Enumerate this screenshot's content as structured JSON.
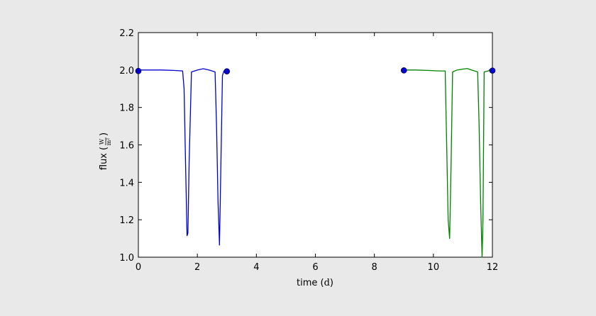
{
  "chart_data": {
    "type": "line",
    "title": "",
    "xlabel": "time",
    "xunit": "d",
    "ylabel": "flux",
    "yunit": {
      "numerator": "W",
      "denominator": "m²"
    },
    "xlim": [
      0,
      12
    ],
    "ylim": [
      1.0,
      2.2
    ],
    "xticks": [
      0,
      2,
      4,
      6,
      8,
      10,
      12
    ],
    "yticks": [
      1.0,
      1.2,
      1.4,
      1.6,
      1.8,
      2.0,
      2.2
    ],
    "xtick_labels": [
      "0",
      "2",
      "4",
      "6",
      "8",
      "10",
      "12"
    ],
    "ytick_labels": [
      "1.0",
      "1.2",
      "1.4",
      "1.6",
      "1.8",
      "2.0",
      "2.2"
    ],
    "grid": false,
    "legend": "none",
    "series": [
      {
        "color": "#0000cc",
        "x": [
          0,
          0.4,
          0.8,
          1.2,
          1.5,
          1.55,
          1.6,
          1.65,
          1.68,
          1.72,
          1.8,
          2.0,
          2.2,
          2.4,
          2.6,
          2.65,
          2.7,
          2.75,
          2.85,
          2.9,
          3.0
        ],
        "y": [
          2.0,
          2.0,
          2.0,
          1.998,
          1.995,
          1.9,
          1.5,
          1.115,
          1.13,
          1.5,
          1.99,
          2.0,
          2.007,
          2.0,
          1.99,
          1.7,
          1.3,
          1.065,
          1.97,
          1.995,
          1.995
        ]
      },
      {
        "color": "#008000",
        "x": [
          9,
          9.4,
          9.8,
          10.2,
          10.4,
          10.45,
          10.5,
          10.55,
          10.6,
          10.65,
          10.8,
          11.0,
          11.15,
          11.3,
          11.5,
          11.55,
          11.6,
          11.65,
          11.68,
          11.72,
          11.8,
          11.9,
          12.0
        ],
        "y": [
          2.0,
          2.0,
          1.998,
          1.995,
          1.995,
          1.6,
          1.2,
          1.1,
          1.5,
          1.99,
          2.0,
          2.005,
          2.008,
          2.0,
          1.99,
          1.7,
          1.3,
          1.0,
          1.2,
          1.99,
          1.993,
          1.997,
          1.997
        ]
      }
    ],
    "markers": [
      {
        "x": 0,
        "y": 1.995,
        "color": "#0000cc"
      },
      {
        "x": 3.0,
        "y": 1.993,
        "color": "#0000cc"
      },
      {
        "x": 9.0,
        "y": 1.998,
        "color": "#0000cc"
      },
      {
        "x": 12.0,
        "y": 1.997,
        "color": "#0000cc"
      }
    ]
  }
}
